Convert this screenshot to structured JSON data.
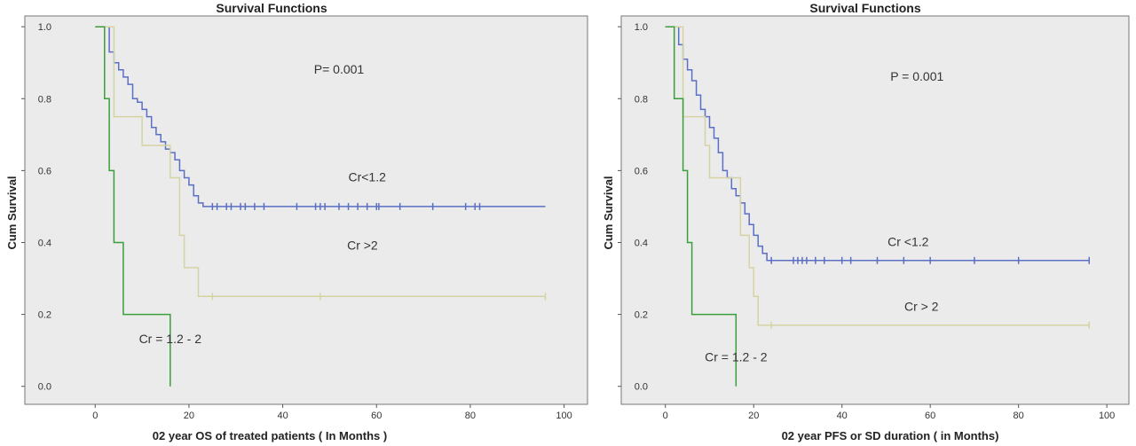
{
  "colors": {
    "cr_lt_1_2": "#5b6fc4",
    "cr_gt_2": "#d6d3a3",
    "cr_1_2_2": "#3a9f3a",
    "plot_bg": "#ebebeb",
    "frame": "#777777"
  },
  "chart_data": [
    {
      "type": "line",
      "step": true,
      "title": "Survival Functions",
      "xlabel": "02 year OS of treated patients ( In Months )",
      "ylabel": "Cum Survival",
      "xlim": [
        -15,
        105
      ],
      "ylim": [
        -0.05,
        1.03
      ],
      "x_ticks": [
        "0",
        "20",
        "40",
        "60",
        "80",
        "100"
      ],
      "y_ticks": [
        "0.0",
        "0.2",
        "0.4",
        "0.6",
        "0.8",
        "1.0"
      ],
      "annotations": [
        {
          "text": "P= 0.001",
          "x": 52,
          "y": 0.87
        },
        {
          "text": "Cr<1.2",
          "x": 58,
          "y": 0.57
        },
        {
          "text": "Cr >2",
          "x": 57,
          "y": 0.38
        },
        {
          "text": "Cr = 1.2 - 2",
          "x": 16,
          "y": 0.12
        }
      ],
      "series": [
        {
          "name": "Cr<1.2",
          "color_key": "cr_lt_1_2",
          "x": [
            0,
            3,
            3,
            4,
            4,
            5,
            5,
            6,
            6,
            7,
            7,
            8,
            8,
            9,
            9,
            10,
            10,
            11,
            11,
            12,
            12,
            13,
            13,
            14,
            14,
            15,
            15,
            16,
            16,
            17,
            17,
            18,
            18,
            19,
            19,
            20,
            20,
            21,
            21,
            22,
            22,
            23,
            23,
            24,
            24,
            96
          ],
          "y": [
            1.0,
            1.0,
            0.93,
            0.93,
            0.9,
            0.9,
            0.88,
            0.88,
            0.86,
            0.86,
            0.84,
            0.84,
            0.8,
            0.8,
            0.79,
            0.79,
            0.77,
            0.77,
            0.75,
            0.75,
            0.72,
            0.72,
            0.7,
            0.7,
            0.68,
            0.68,
            0.66,
            0.66,
            0.65,
            0.65,
            0.63,
            0.63,
            0.6,
            0.6,
            0.58,
            0.58,
            0.56,
            0.56,
            0.53,
            0.53,
            0.51,
            0.51,
            0.5,
            0.5,
            0.5,
            0.5
          ],
          "censored_x": [
            25,
            26,
            28,
            29,
            31,
            32,
            34,
            36,
            43,
            47,
            48,
            49,
            52,
            54,
            56,
            58,
            60,
            60.5,
            65,
            72,
            79,
            81,
            82
          ],
          "censored_y": 0.5
        },
        {
          "name": "Cr >2",
          "color_key": "cr_gt_2",
          "x": [
            0,
            3,
            3,
            4,
            4,
            10,
            10,
            16,
            16,
            18,
            18,
            19,
            19,
            22,
            22,
            96
          ],
          "y": [
            1.0,
            1.0,
            1.0,
            1.0,
            0.75,
            0.75,
            0.67,
            0.67,
            0.58,
            0.58,
            0.42,
            0.42,
            0.33,
            0.33,
            0.25,
            0.25
          ],
          "censored_x": [
            25,
            48,
            96
          ],
          "censored_y": 0.25
        },
        {
          "name": "Cr = 1.2 - 2",
          "color_key": "cr_1_2_2",
          "x": [
            0,
            2,
            2,
            3,
            3,
            4,
            4,
            6,
            6,
            16,
            16
          ],
          "y": [
            1.0,
            1.0,
            0.8,
            0.8,
            0.6,
            0.6,
            0.4,
            0.4,
            0.2,
            0.2,
            0.0
          ]
        }
      ]
    },
    {
      "type": "line",
      "step": true,
      "title": "Survival Functions",
      "xlabel": "02 year PFS or SD duration ( in Months)",
      "ylabel": "Cum Survival",
      "xlim": [
        -10,
        105
      ],
      "ylim": [
        -0.05,
        1.03
      ],
      "x_ticks": [
        "0",
        "20",
        "40",
        "60",
        "80",
        "100"
      ],
      "y_ticks": [
        "0.0",
        "0.2",
        "0.4",
        "0.6",
        "0.8",
        "1.0"
      ],
      "annotations": [
        {
          "text": "P = 0.001",
          "x": 57,
          "y": 0.85
        },
        {
          "text": "Cr <1.2",
          "x": 55,
          "y": 0.39
        },
        {
          "text": "Cr > 2",
          "x": 58,
          "y": 0.21
        },
        {
          "text": "Cr = 1.2 - 2",
          "x": 16,
          "y": 0.07
        }
      ],
      "series": [
        {
          "name": "Cr <1.2",
          "color_key": "cr_lt_1_2",
          "x": [
            0,
            3,
            3,
            4,
            4,
            5,
            5,
            6,
            6,
            7,
            7,
            8,
            8,
            9,
            9,
            10,
            10,
            11,
            11,
            12,
            12,
            13,
            13,
            14,
            14,
            15,
            15,
            16,
            16,
            17,
            17,
            18,
            18,
            19,
            19,
            20,
            20,
            21,
            21,
            22,
            22,
            23,
            23,
            24,
            24,
            96
          ],
          "y": [
            1.0,
            1.0,
            0.95,
            0.95,
            0.91,
            0.91,
            0.88,
            0.88,
            0.85,
            0.85,
            0.81,
            0.81,
            0.77,
            0.77,
            0.75,
            0.75,
            0.72,
            0.72,
            0.69,
            0.69,
            0.65,
            0.65,
            0.6,
            0.6,
            0.58,
            0.58,
            0.55,
            0.55,
            0.53,
            0.53,
            0.51,
            0.51,
            0.48,
            0.48,
            0.45,
            0.45,
            0.42,
            0.42,
            0.39,
            0.39,
            0.37,
            0.37,
            0.35,
            0.35,
            0.35,
            0.35
          ],
          "censored_x": [
            24,
            29,
            30,
            31,
            32,
            34,
            36,
            40,
            42,
            48,
            54,
            60,
            70,
            80,
            96
          ],
          "censored_y": 0.35
        },
        {
          "name": "Cr > 2",
          "color_key": "cr_gt_2",
          "x": [
            0,
            4,
            4,
            9,
            9,
            10,
            10,
            17,
            17,
            19,
            19,
            20,
            20,
            21,
            21,
            96
          ],
          "y": [
            1.0,
            1.0,
            0.75,
            0.75,
            0.67,
            0.67,
            0.58,
            0.58,
            0.42,
            0.42,
            0.33,
            0.33,
            0.25,
            0.25,
            0.17,
            0.17
          ],
          "censored_x": [
            24,
            96
          ],
          "censored_y": 0.17
        },
        {
          "name": "Cr = 1.2 - 2",
          "color_key": "cr_1_2_2",
          "x": [
            0,
            2,
            2,
            4,
            4,
            5,
            5,
            6,
            6,
            16,
            16
          ],
          "y": [
            1.0,
            1.0,
            0.8,
            0.8,
            0.6,
            0.6,
            0.4,
            0.4,
            0.2,
            0.2,
            0.0
          ]
        }
      ]
    }
  ]
}
